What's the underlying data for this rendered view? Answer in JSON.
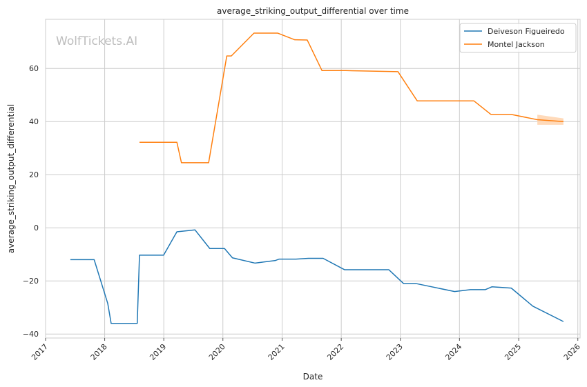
{
  "chart_data": {
    "type": "line",
    "title": "average_striking_output_differential over time",
    "xlabel": "Date",
    "ylabel": "average_striking_output_differential",
    "watermark": "WolfTickets.AI",
    "xlim": [
      "2017-01-01",
      "2026-01-15"
    ],
    "ylim": [
      -41.5,
      78.5
    ],
    "x_ticks": [
      "2017",
      "2018",
      "2019",
      "2020",
      "2021",
      "2022",
      "2023",
      "2024",
      "2025",
      "2026"
    ],
    "y_ticks": [
      -40,
      -20,
      0,
      20,
      40,
      60
    ],
    "y_tick_labels": [
      "−40",
      "−20",
      "0",
      "20",
      "40",
      "60"
    ],
    "grid": true,
    "legend_position": "top-right",
    "series": [
      {
        "name": "Deiveson Figueiredo",
        "color": "#1f77b4",
        "points": [
          [
            "2017-06-03",
            -12
          ],
          [
            "2017-10-28",
            -12
          ],
          [
            "2018-01-20",
            -28.5
          ],
          [
            "2018-02-10",
            -36
          ],
          [
            "2018-07-21",
            -36
          ],
          [
            "2018-08-04",
            -10.3
          ],
          [
            "2018-12-31",
            -10.3
          ],
          [
            "2019-03-23",
            -1.5
          ],
          [
            "2019-07-13",
            -0.8
          ],
          [
            "2019-10-12",
            -7.8
          ],
          [
            "2020-01-11",
            -7.8
          ],
          [
            "2020-02-29",
            -11.3
          ],
          [
            "2020-07-18",
            -13.3
          ],
          [
            "2020-11-21",
            -12.3
          ],
          [
            "2020-12-12",
            -11.8
          ],
          [
            "2021-03-27",
            -11.8
          ],
          [
            "2021-06-12",
            -11.5
          ],
          [
            "2021-09-11",
            -11.5
          ],
          [
            "2022-01-22",
            -15.8
          ],
          [
            "2022-10-22",
            -15.8
          ],
          [
            "2023-01-21",
            -21
          ],
          [
            "2023-04-08",
            -21
          ],
          [
            "2023-12-02",
            -24
          ],
          [
            "2024-03-09",
            -23.3
          ],
          [
            "2024-06-08",
            -23.3
          ],
          [
            "2024-07-20",
            -22.2
          ],
          [
            "2024-11-16",
            -22.7
          ],
          [
            "2025-03-29",
            -29.5
          ],
          [
            "2025-10-04",
            -35.3
          ]
        ]
      },
      {
        "name": "Montel Jackson",
        "color": "#ff7f0e",
        "band_color": "#ffd6b2",
        "points": [
          [
            "2018-08-04",
            32.2
          ],
          [
            "2019-03-23",
            32.2
          ],
          [
            "2019-04-20",
            24.5
          ],
          [
            "2019-10-05",
            24.5
          ],
          [
            "2020-01-25",
            64.7
          ],
          [
            "2020-02-22",
            64.7
          ],
          [
            "2020-07-11",
            73.3
          ],
          [
            "2020-12-05",
            73.3
          ],
          [
            "2021-03-20",
            70.8
          ],
          [
            "2021-06-05",
            70.7
          ],
          [
            "2021-09-04",
            59.2
          ],
          [
            "2022-01-29",
            59.2
          ],
          [
            "2022-12-17",
            58.8
          ],
          [
            "2023-04-15",
            47.8
          ],
          [
            "2024-03-30",
            47.8
          ],
          [
            "2024-07-13",
            42.7
          ],
          [
            "2024-11-16",
            42.7
          ],
          [
            "2025-04-26",
            40.7
          ],
          [
            "2025-10-04",
            40
          ]
        ],
        "band": [
          [
            "2025-04-26",
            38.8,
            42.6
          ],
          [
            "2025-10-04",
            38.8,
            41.2
          ]
        ]
      }
    ]
  }
}
